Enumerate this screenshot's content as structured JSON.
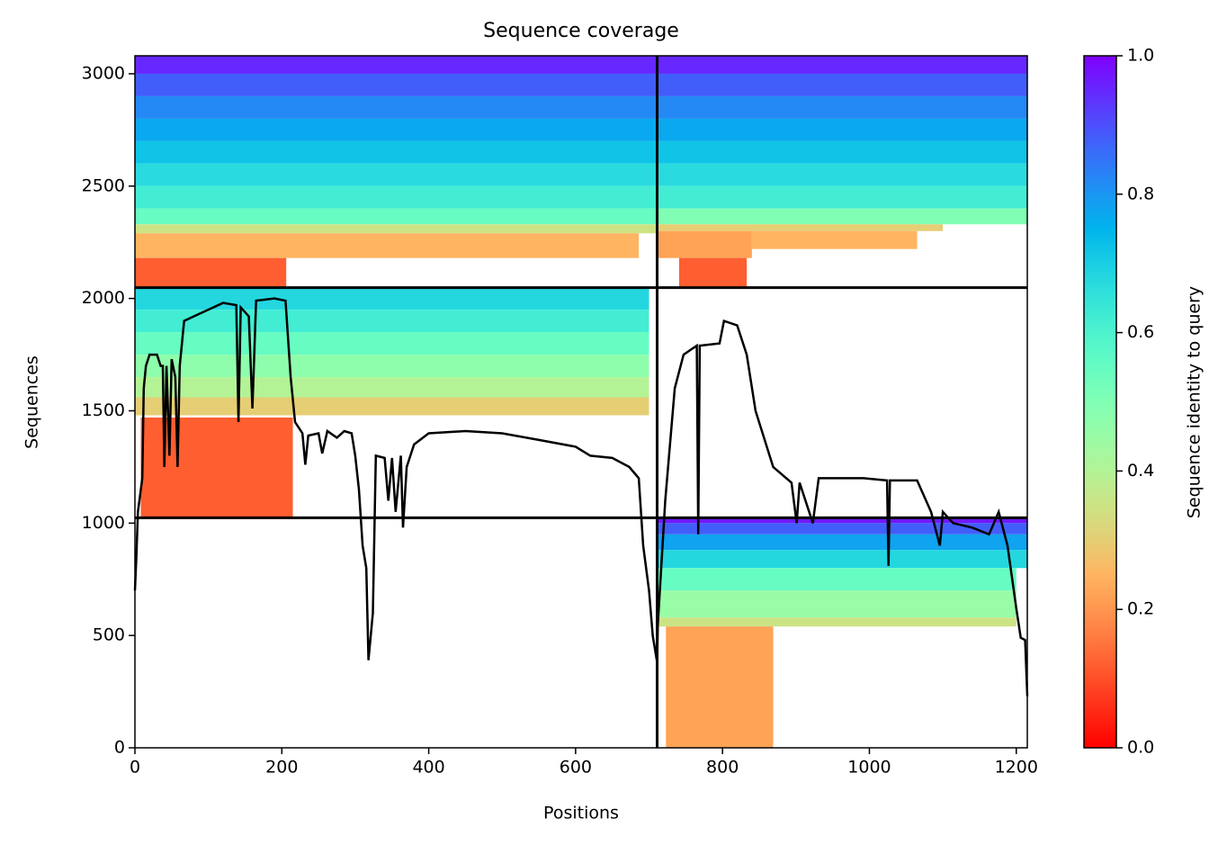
{
  "chart_data": {
    "type": "coverage",
    "title": "Sequence coverage",
    "x_label": "Positions",
    "y_label": "Sequences",
    "colorbar_label": "Sequence identity to query",
    "colormap": "rainbow_r",
    "xlim": [
      0,
      1215
    ],
    "xticks": [
      0,
      200,
      400,
      600,
      800,
      1000,
      1200
    ],
    "ylim": [
      0,
      3080
    ],
    "yticks": [
      0,
      500,
      1000,
      1500,
      2000,
      2500,
      3000
    ],
    "clim": [
      0,
      1
    ],
    "cticks": [
      {
        "value": 0,
        "label": "0.0"
      },
      0.2,
      0.4,
      0.6,
      0.8,
      {
        "value": 1,
        "label": "1.0"
      }
    ],
    "blocks": [
      {
        "x": [
          0,
          711
        ],
        "y": [
          3000,
          3080
        ],
        "identity": 0.95
      },
      {
        "x": [
          0,
          711
        ],
        "y": [
          2900,
          3000
        ],
        "identity": 0.88
      },
      {
        "x": [
          0,
          711
        ],
        "y": [
          2800,
          2900
        ],
        "identity": 0.82
      },
      {
        "x": [
          0,
          711
        ],
        "y": [
          2700,
          2800
        ],
        "identity": 0.77
      },
      {
        "x": [
          0,
          711
        ],
        "y": [
          2600,
          2700
        ],
        "identity": 0.72
      },
      {
        "x": [
          0,
          711
        ],
        "y": [
          2500,
          2600
        ],
        "identity": 0.67
      },
      {
        "x": [
          0,
          711
        ],
        "y": [
          2400,
          2500
        ],
        "identity": 0.62
      },
      {
        "x": [
          0,
          711
        ],
        "y": [
          2330,
          2400
        ],
        "identity": 0.55
      },
      {
        "x": [
          0,
          711
        ],
        "y": [
          2290,
          2330
        ],
        "identity": 0.35
      },
      {
        "x": [
          0,
          686
        ],
        "y": [
          2180,
          2290
        ],
        "identity": 0.25
      },
      {
        "x": [
          0,
          206
        ],
        "y": [
          2048,
          2180
        ],
        "identity": 0.12
      },
      {
        "x": [
          711,
          1215
        ],
        "y": [
          3000,
          3080
        ],
        "identity": 0.95
      },
      {
        "x": [
          711,
          1215
        ],
        "y": [
          2900,
          3000
        ],
        "identity": 0.88
      },
      {
        "x": [
          711,
          1215
        ],
        "y": [
          2800,
          2900
        ],
        "identity": 0.82
      },
      {
        "x": [
          711,
          1215
        ],
        "y": [
          2700,
          2800
        ],
        "identity": 0.77
      },
      {
        "x": [
          711,
          1215
        ],
        "y": [
          2600,
          2700
        ],
        "identity": 0.72
      },
      {
        "x": [
          711,
          1215
        ],
        "y": [
          2500,
          2600
        ],
        "identity": 0.67
      },
      {
        "x": [
          711,
          1215
        ],
        "y": [
          2400,
          2500
        ],
        "identity": 0.62
      },
      {
        "x": [
          711,
          1215
        ],
        "y": [
          2330,
          2400
        ],
        "identity": 0.5
      },
      {
        "x": [
          711,
          1100
        ],
        "y": [
          2300,
          2330
        ],
        "identity": 0.3
      },
      {
        "x": [
          711,
          840
        ],
        "y": [
          2180,
          2300
        ],
        "identity": 0.22
      },
      {
        "x": [
          840,
          1065
        ],
        "y": [
          2220,
          2300
        ],
        "identity": 0.25
      },
      {
        "x": [
          741,
          833
        ],
        "y": [
          2048,
          2180
        ],
        "identity": 0.12
      },
      {
        "x": [
          0,
          700
        ],
        "y": [
          1950,
          2048
        ],
        "identity": 0.68
      },
      {
        "x": [
          0,
          700
        ],
        "y": [
          1850,
          1950
        ],
        "identity": 0.62
      },
      {
        "x": [
          0,
          700
        ],
        "y": [
          1750,
          1850
        ],
        "identity": 0.55
      },
      {
        "x": [
          0,
          700
        ],
        "y": [
          1650,
          1750
        ],
        "identity": 0.47
      },
      {
        "x": [
          0,
          700
        ],
        "y": [
          1560,
          1650
        ],
        "identity": 0.4
      },
      {
        "x": [
          0,
          700
        ],
        "y": [
          1480,
          1560
        ],
        "identity": 0.3
      },
      {
        "x": [
          8,
          215
        ],
        "y": [
          1024,
          1470
        ],
        "identity": 0.12
      },
      {
        "x": [
          711,
          1215
        ],
        "y": [
          1000,
          1024
        ],
        "identity": 0.97
      },
      {
        "x": [
          711,
          1215
        ],
        "y": [
          950,
          1000
        ],
        "identity": 0.88
      },
      {
        "x": [
          711,
          1215
        ],
        "y": [
          880,
          950
        ],
        "identity": 0.78
      },
      {
        "x": [
          711,
          1215
        ],
        "y": [
          800,
          880
        ],
        "identity": 0.68
      },
      {
        "x": [
          711,
          1200
        ],
        "y": [
          700,
          800
        ],
        "identity": 0.55
      },
      {
        "x": [
          711,
          1200
        ],
        "y": [
          580,
          700
        ],
        "identity": 0.45
      },
      {
        "x": [
          711,
          1200
        ],
        "y": [
          540,
          580
        ],
        "identity": 0.35
      },
      {
        "x": [
          723,
          869
        ],
        "y": [
          0,
          540
        ],
        "identity": 0.22
      }
    ],
    "dividers": {
      "x": [
        711
      ],
      "y": [
        1024,
        2048
      ],
      "color": "#000000"
    },
    "coverage": {
      "color": "#000000",
      "x": [
        0,
        2,
        4,
        10,
        12,
        15,
        20,
        30,
        35,
        38,
        40,
        43,
        47,
        50,
        55,
        58,
        61,
        67,
        80,
        100,
        120,
        138,
        141,
        144,
        155,
        160,
        165,
        190,
        205,
        212,
        218,
        228,
        232,
        236,
        250,
        255,
        262,
        275,
        285,
        295,
        300,
        305,
        310,
        315,
        318,
        324,
        328,
        340,
        345,
        350,
        355,
        362,
        365,
        370,
        380,
        400,
        450,
        500,
        550,
        600,
        620,
        650,
        673,
        686,
        692,
        700,
        705,
        711,
        712,
        722,
        735,
        747,
        765,
        767,
        769,
        796,
        802,
        820,
        833,
        845,
        869,
        894,
        901,
        905,
        923,
        931,
        992,
        1024,
        1026,
        1028,
        1065,
        1084,
        1096,
        1100,
        1114,
        1140,
        1163,
        1176,
        1188,
        1200,
        1206,
        1212,
        1215
      ],
      "values": [
        700,
        850,
        1050,
        1200,
        1600,
        1700,
        1750,
        1750,
        1700,
        1700,
        1250,
        1700,
        1300,
        1730,
        1650,
        1250,
        1700,
        1900,
        1920,
        1950,
        1980,
        1970,
        1450,
        1960,
        1920,
        1510,
        1990,
        2000,
        1990,
        1650,
        1450,
        1400,
        1260,
        1390,
        1400,
        1310,
        1410,
        1380,
        1410,
        1400,
        1300,
        1150,
        900,
        800,
        390,
        600,
        1300,
        1290,
        1100,
        1290,
        1050,
        1300,
        980,
        1250,
        1350,
        1400,
        1410,
        1400,
        1370,
        1340,
        1300,
        1290,
        1250,
        1200,
        900,
        700,
        500,
        380,
        550,
        1100,
        1600,
        1750,
        1790,
        950,
        1790,
        1800,
        1900,
        1880,
        1750,
        1500,
        1250,
        1180,
        1000,
        1180,
        1000,
        1200,
        1200,
        1190,
        810,
        1190,
        1190,
        1050,
        900,
        1050,
        1000,
        980,
        950,
        1050,
        900,
        620,
        490,
        480,
        230
      ]
    }
  }
}
